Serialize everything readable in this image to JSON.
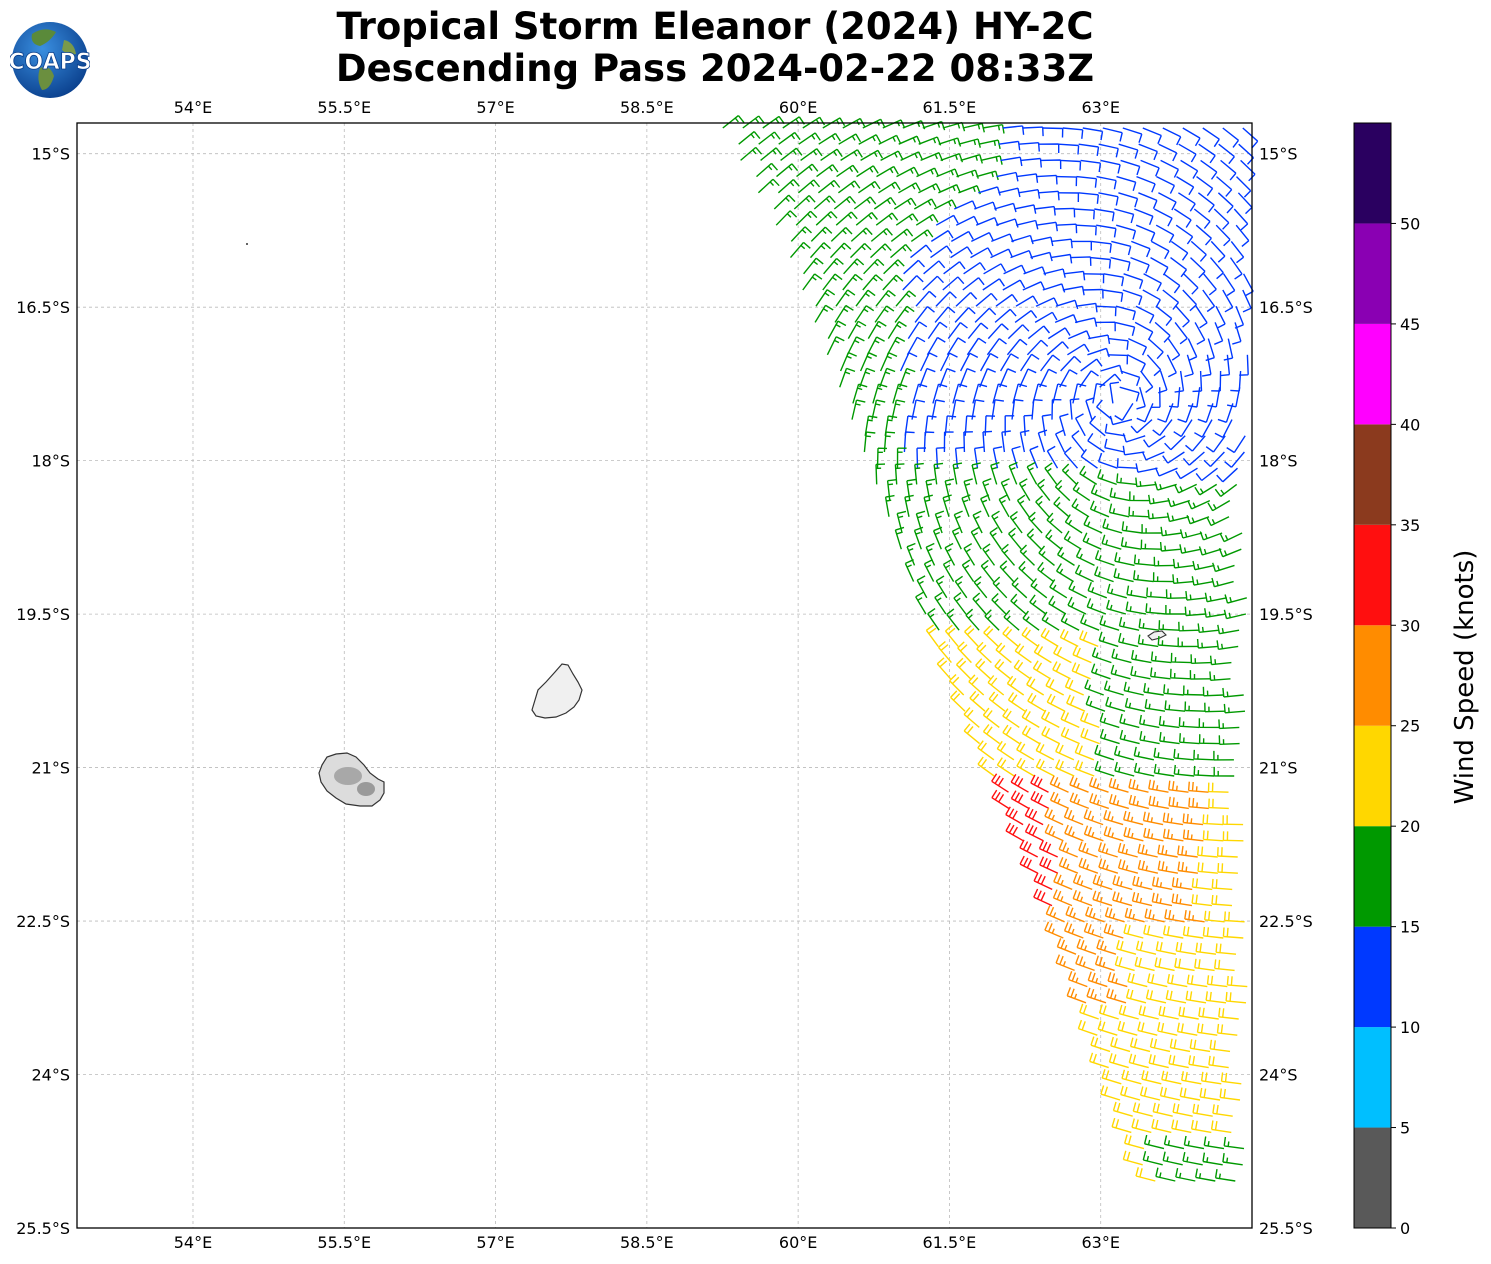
{
  "title": {
    "line1": "Tropical Storm Eleanor (2024) HY-2C",
    "line2": "Descending Pass 2024-02-22 08:33Z"
  },
  "logo": {
    "text": "COAPS"
  },
  "map": {
    "lon_range": [
      52.85,
      64.5
    ],
    "lat_range": [
      -25.5,
      -14.7
    ],
    "lon_ticks": [
      "54°E",
      "55.5°E",
      "57°E",
      "58.5°E",
      "60°E",
      "61.5°E",
      "63°E"
    ],
    "lon_tick_values": [
      54,
      55.5,
      57,
      58.5,
      60,
      61.5,
      63
    ],
    "lat_ticks": [
      "15°S",
      "16.5°S",
      "18°S",
      "19.5°S",
      "21°S",
      "22.5°S",
      "24°S",
      "25.5°S"
    ],
    "lat_tick_values": [
      -15,
      -16.5,
      -18,
      -19.5,
      -21,
      -22.5,
      -24,
      -25.5
    ],
    "grid": true,
    "islands": [
      "Réunion",
      "Mauritius",
      "Rodrigues"
    ]
  },
  "colorbar": {
    "label": "Wind Speed (knots)",
    "bounds": [
      0,
      5,
      10,
      15,
      20,
      25,
      30,
      35,
      40,
      45,
      50,
      55
    ],
    "tick_labels": [
      "0",
      "5",
      "10",
      "15",
      "20",
      "25",
      "30",
      "35",
      "40",
      "45",
      "50"
    ],
    "colors": [
      "#595959",
      "#00bfff",
      "#0039ff",
      "#009900",
      "#ffd700",
      "#ff8c00",
      "#ff0f0f",
      "#8b3a1e",
      "#ff00ff",
      "#8a00b3",
      "#2a0060"
    ]
  },
  "colors": {
    "land_outline": "#333333",
    "grid": "#bbbbbb"
  }
}
